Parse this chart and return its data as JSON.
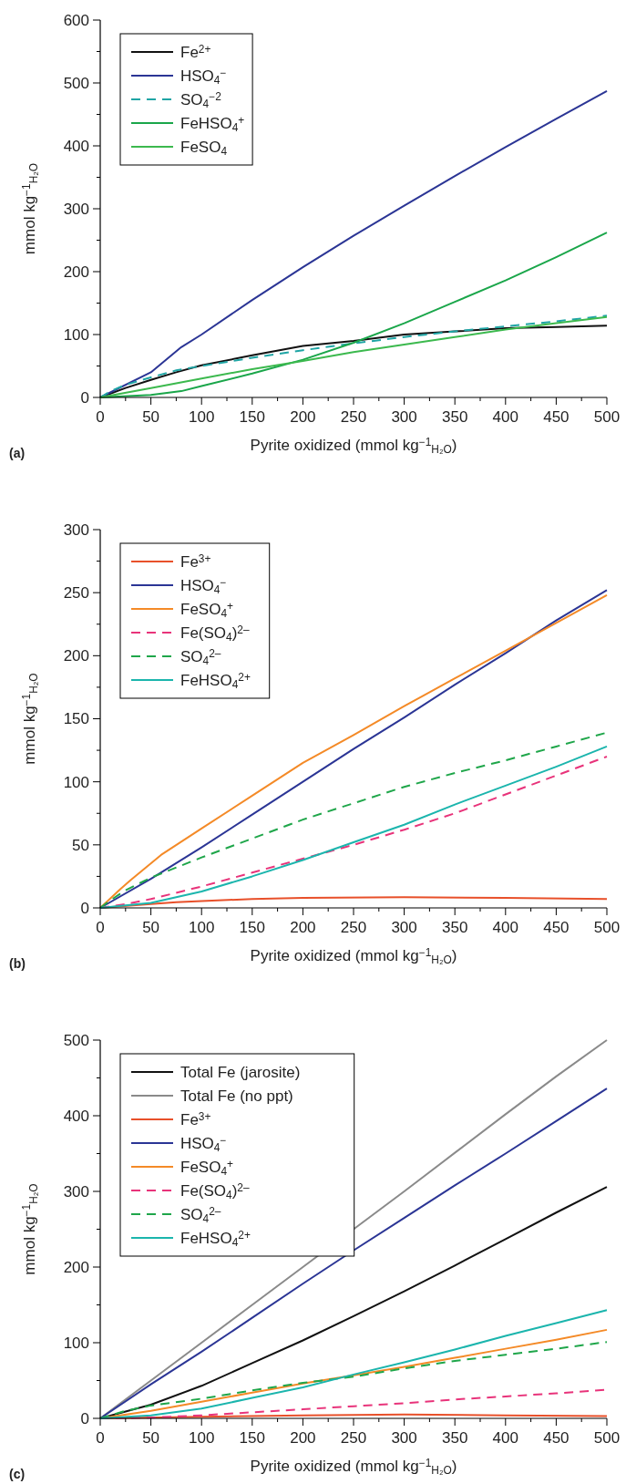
{
  "chart_data": [
    {
      "type": "line",
      "xlabel": "Pyrite oxidized (mmol kg$^{−1}$$_{H₂O}$)",
      "ylabel": "mmol kg$^{−1}$$_{H₂O}$",
      "annotations": [
        "(a)"
      ],
      "legend": "top left",
      "xlim": [
        0,
        500
      ],
      "ylim": [
        0,
        600
      ],
      "xticks": [
        0,
        {
          "value": 25,
          "label": null
        },
        50,
        {
          "value": 75,
          "label": null
        },
        100,
        {
          "value": 125,
          "label": null
        },
        150,
        {
          "value": 175,
          "label": null
        },
        200,
        {
          "value": 225,
          "label": null
        },
        250,
        {
          "value": 275,
          "label": null
        },
        300,
        {
          "value": 325,
          "label": null
        },
        350,
        {
          "value": 375,
          "label": null
        },
        400,
        {
          "value": 425,
          "label": null
        },
        450,
        {
          "value": 475,
          "label": null
        },
        500
      ],
      "yticks": [
        0,
        {
          "value": 50,
          "label": null
        },
        100,
        {
          "value": 150,
          "label": null
        },
        200,
        {
          "value": 250,
          "label": null
        },
        300,
        {
          "value": 350,
          "label": null
        },
        400,
        {
          "value": 450,
          "label": null
        },
        500,
        {
          "value": 550,
          "label": null
        },
        600
      ],
      "series": [
        {
          "name": "Fe$^{2+}$",
          "color": "#111111",
          "x": [
            0,
            25,
            50,
            75,
            100,
            150,
            200,
            250,
            300,
            350,
            400,
            450,
            500
          ],
          "values": [
            0,
            15,
            28,
            40,
            51,
            67,
            82,
            90,
            100,
            105,
            110,
            112,
            114
          ]
        },
        {
          "name": "HSO$_{4}$$^{−}$",
          "color": "#2b3595",
          "x": [
            0,
            50,
            80,
            100,
            150,
            200,
            250,
            300,
            350,
            400,
            450,
            500
          ],
          "values": [
            0,
            40,
            80,
            100,
            155,
            207,
            257,
            305,
            352,
            398,
            443,
            487
          ]
        },
        {
          "name": "SO$_{4}$$^{−2}$",
          "color": "#1fa5a5",
          "line_style": "dashed",
          "x": [
            0,
            10,
            25,
            50,
            75,
            100,
            150,
            200,
            250,
            300,
            350,
            400,
            450,
            500
          ],
          "values": [
            0,
            10,
            20,
            32,
            43,
            50,
            63,
            75,
            86,
            96,
            105,
            113,
            121,
            130
          ]
        },
        {
          "name": "FeHSO$_{4}$$^{+}$",
          "color": "#1aa64a",
          "x": [
            0,
            50,
            80,
            100,
            150,
            200,
            250,
            300,
            350,
            400,
            450,
            500
          ],
          "values": [
            0,
            4,
            10,
            18,
            38,
            60,
            87,
            118,
            152,
            186,
            223,
            262
          ]
        },
        {
          "name": "FeSO$_{4}$",
          "color": "#3cb94e",
          "x": [
            0,
            50,
            100,
            150,
            200,
            250,
            300,
            350,
            400,
            450,
            500
          ],
          "values": [
            0,
            15,
            30,
            45,
            58,
            72,
            84,
            96,
            108,
            118,
            128
          ]
        }
      ]
    },
    {
      "type": "line",
      "xlabel": "Pyrite oxidized (mmol kg$^{−1}$$_{H₂O}$)",
      "ylabel": "mmol kg$^{−1}$$_{H₂O}$",
      "annotations": [
        "(b)"
      ],
      "legend": "top left",
      "xlim": [
        0,
        500
      ],
      "ylim": [
        0,
        300
      ],
      "xticks": [
        0,
        {
          "value": 25,
          "label": null
        },
        50,
        {
          "value": 75,
          "label": null
        },
        100,
        {
          "value": 125,
          "label": null
        },
        150,
        {
          "value": 175,
          "label": null
        },
        200,
        {
          "value": 225,
          "label": null
        },
        250,
        {
          "value": 275,
          "label": null
        },
        300,
        {
          "value": 325,
          "label": null
        },
        350,
        {
          "value": 375,
          "label": null
        },
        400,
        {
          "value": 425,
          "label": null
        },
        450,
        {
          "value": 475,
          "label": null
        },
        500
      ],
      "yticks": [
        0,
        {
          "value": 25,
          "label": null
        },
        50,
        {
          "value": 75,
          "label": null
        },
        100,
        {
          "value": 125,
          "label": null
        },
        150,
        {
          "value": 175,
          "label": null
        },
        200,
        {
          "value": 225,
          "label": null
        },
        250,
        {
          "value": 275,
          "label": null
        },
        300
      ],
      "series": [
        {
          "name": "Fe$^{3+}$",
          "color": "#e8502a",
          "x": [
            0,
            50,
            75,
            100,
            150,
            200,
            300,
            400,
            500
          ],
          "values": [
            0,
            3,
            4.5,
            5.5,
            7,
            8,
            8.5,
            8,
            7
          ]
        },
        {
          "name": "HSO$_{4}$$^{−}$",
          "color": "#2b3595",
          "x": [
            0,
            50,
            100,
            150,
            200,
            250,
            300,
            350,
            400,
            450,
            500
          ],
          "values": [
            0,
            23,
            48,
            74,
            100,
            126,
            151,
            177,
            202,
            228,
            252
          ]
        },
        {
          "name": "FeSO$_{4}$$^{+}$",
          "color": "#f48a27",
          "x": [
            0,
            20,
            30,
            60,
            100,
            150,
            200,
            250,
            300,
            350,
            400,
            450,
            500
          ],
          "values": [
            0,
            15,
            22,
            42,
            63,
            89,
            115,
            137,
            160,
            182,
            204,
            226,
            248
          ]
        },
        {
          "name": "Fe(SO$_{4}$)$^{2–}$",
          "color": "#e8337a",
          "line_style": "dashed",
          "x": [
            0,
            25,
            50,
            100,
            150,
            200,
            250,
            300,
            350,
            400,
            450,
            500
          ],
          "values": [
            0,
            3,
            7,
            17,
            28,
            39,
            50,
            62,
            75,
            90,
            105,
            120
          ]
        },
        {
          "name": "SO$_{4}$$^{2–}$",
          "color": "#1fa64a",
          "line_style": "dashed",
          "x": [
            0,
            10,
            25,
            50,
            100,
            150,
            200,
            250,
            300,
            350,
            400,
            450,
            500
          ],
          "values": [
            0,
            6,
            14,
            24,
            40,
            55,
            70,
            83,
            96,
            107,
            117,
            128,
            139
          ]
        },
        {
          "name": "FeHSO$_{4}$$^{2+}$",
          "color": "#1bb5ad",
          "x": [
            0,
            50,
            100,
            150,
            200,
            250,
            300,
            350,
            400,
            450,
            500
          ],
          "values": [
            0,
            4,
            13,
            25,
            38,
            52,
            66,
            82,
            97,
            112,
            128
          ]
        }
      ]
    },
    {
      "type": "line",
      "xlabel": "Pyrite oxidized (mmol kg$^{−1}$$_{H₂O}$)",
      "ylabel": "mmol kg$^{−1}$$_{H₂O}$",
      "annotations": [
        "(c)"
      ],
      "legend": "top left",
      "xlim": [
        0,
        500
      ],
      "ylim": [
        0,
        500
      ],
      "xticks": [
        0,
        {
          "value": 25,
          "label": null
        },
        50,
        {
          "value": 75,
          "label": null
        },
        100,
        {
          "value": 125,
          "label": null
        },
        150,
        {
          "value": 175,
          "label": null
        },
        200,
        {
          "value": 225,
          "label": null
        },
        250,
        {
          "value": 275,
          "label": null
        },
        300,
        {
          "value": 325,
          "label": null
        },
        350,
        {
          "value": 375,
          "label": null
        },
        400,
        {
          "value": 425,
          "label": null
        },
        450,
        {
          "value": 475,
          "label": null
        },
        500
      ],
      "yticks": [
        0,
        {
          "value": 50,
          "label": null
        },
        100,
        {
          "value": 150,
          "label": null
        },
        200,
        {
          "value": 250,
          "label": null
        },
        300,
        {
          "value": 350,
          "label": null
        },
        400,
        {
          "value": 450,
          "label": null
        },
        500
      ],
      "series": [
        {
          "name": "Total Fe (jarosite)",
          "color": "#111111",
          "x": [
            0,
            50,
            100,
            150,
            200,
            250,
            300,
            350,
            400,
            450,
            500
          ],
          "values": [
            0,
            18,
            43,
            73,
            103,
            135,
            168,
            202,
            237,
            272,
            306
          ]
        },
        {
          "name": "Total Fe (no ppt)",
          "color": "#8a8a8a",
          "x": [
            0,
            50,
            100,
            150,
            200,
            250,
            300,
            350,
            400,
            450,
            500
          ],
          "values": [
            0,
            50,
            100,
            150,
            200,
            250,
            300,
            351,
            402,
            452,
            500
          ]
        },
        {
          "name": "Fe$^{3+}$",
          "color": "#e8502a",
          "x": [
            0,
            100,
            200,
            300,
            400,
            500
          ],
          "values": [
            0,
            2,
            4,
            5,
            4,
            3
          ]
        },
        {
          "name": "HSO$_{4}$$^{−}$",
          "color": "#2b3595",
          "x": [
            0,
            50,
            100,
            150,
            200,
            250,
            300,
            350,
            400,
            450,
            500
          ],
          "values": [
            0,
            45,
            88,
            133,
            178,
            222,
            265,
            308,
            350,
            393,
            436
          ]
        },
        {
          "name": "FeSO$_{4}$$^{+}$",
          "color": "#f48a27",
          "x": [
            0,
            50,
            100,
            150,
            200,
            250,
            300,
            350,
            400,
            450,
            500
          ],
          "values": [
            0,
            10,
            22,
            34,
            46,
            57,
            68,
            80,
            92,
            104,
            117
          ]
        },
        {
          "name": "Fe(SO$_{4}$)$^{2–}$",
          "color": "#e8337a",
          "line_style": "dashed",
          "x": [
            0,
            50,
            100,
            150,
            200,
            250,
            300,
            350,
            400,
            450,
            500
          ],
          "values": [
            0,
            1,
            4,
            8,
            12,
            16,
            20,
            25,
            29,
            33,
            38
          ]
        },
        {
          "name": "SO$_{4}$$^{2–}$",
          "color": "#1fa64a",
          "line_style": "dashed",
          "x": [
            0,
            25,
            50,
            100,
            150,
            200,
            250,
            300,
            350,
            400,
            450,
            500
          ],
          "values": [
            0,
            10,
            17,
            26,
            37,
            47,
            55,
            66,
            76,
            84,
            92,
            101
          ]
        },
        {
          "name": "FeHSO$_{4}$$^{2+}$",
          "color": "#1bb5ad",
          "x": [
            0,
            50,
            100,
            150,
            200,
            250,
            300,
            350,
            400,
            450,
            500
          ],
          "values": [
            0,
            4,
            13,
            27,
            41,
            58,
            74,
            91,
            109,
            126,
            143
          ]
        }
      ]
    }
  ]
}
